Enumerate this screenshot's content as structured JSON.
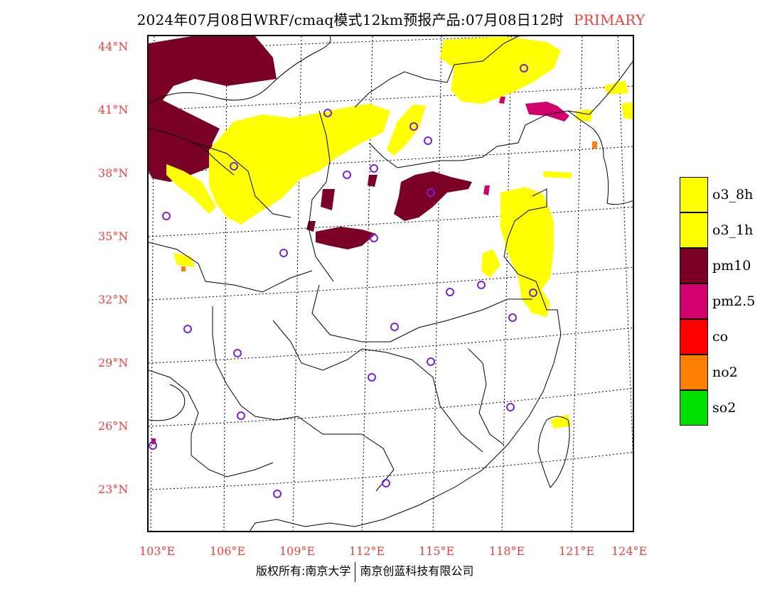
{
  "header": {
    "title": "2024年07月08日WRF/cmaq模式12km预报产品:07月08日12时",
    "badge": "PRIMARY",
    "badge_color": "#e8413c"
  },
  "map": {
    "lat_labels": [
      "44°N",
      "41°N",
      "38°N",
      "35°N",
      "32°N",
      "29°N",
      "26°N",
      "23°N"
    ],
    "lon_labels": [
      "103°E",
      "106°E",
      "109°E",
      "112°E",
      "115°E",
      "118°E",
      "121°E",
      "124°E"
    ],
    "label_color": "#e8413c"
  },
  "legend": [
    {
      "label": "o3_8h",
      "color": "#ffff00"
    },
    {
      "label": "o3_1h",
      "color": "#ffff00"
    },
    {
      "label": "pm10",
      "color": "#7a0027"
    },
    {
      "label": "pm2.5",
      "color": "#d0006f"
    },
    {
      "label": "co",
      "color": "#ff0000"
    },
    {
      "label": "no2",
      "color": "#ff8000"
    },
    {
      "label": "so2",
      "color": "#00e000"
    }
  ],
  "footer": {
    "left": "版权所有:南京大学",
    "right": "南京创蓝科技有限公司"
  }
}
